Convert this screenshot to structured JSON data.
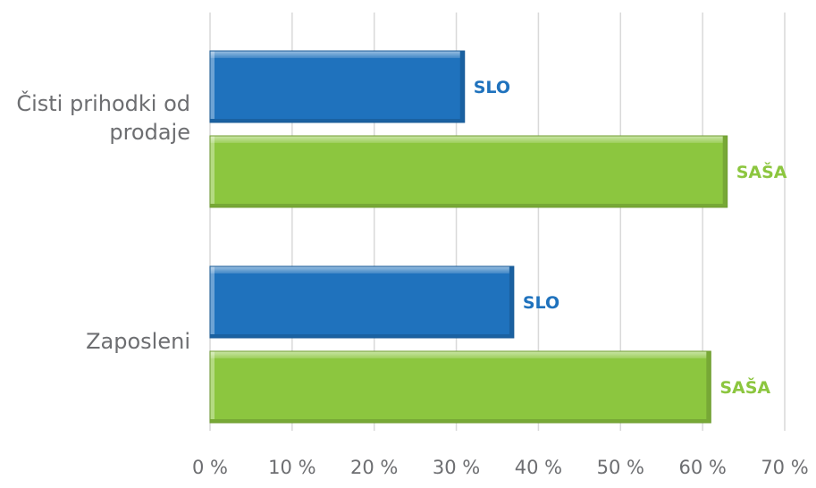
{
  "chart_data": {
    "type": "bar",
    "orientation": "horizontal",
    "categories": [
      "Čisti prihodki od prodaje",
      "Zaposleni"
    ],
    "category_lines": [
      [
        "Čisti prihodki od",
        "prodaje"
      ],
      [
        "Zaposleni"
      ]
    ],
    "series": [
      {
        "name": "SLO",
        "values": [
          31,
          37
        ],
        "color": "#1f72bd"
      },
      {
        "name": "SAŠA",
        "values": [
          63,
          61
        ],
        "color": "#8cc63f"
      }
    ],
    "x_ticks": [
      "0 %",
      "10 %",
      "20 %",
      "30 %",
      "40 %",
      "50 %",
      "60 %",
      "70 %"
    ],
    "xlim": [
      0,
      70
    ],
    "grid": true,
    "legend": "none",
    "data_labels": "series-name"
  }
}
